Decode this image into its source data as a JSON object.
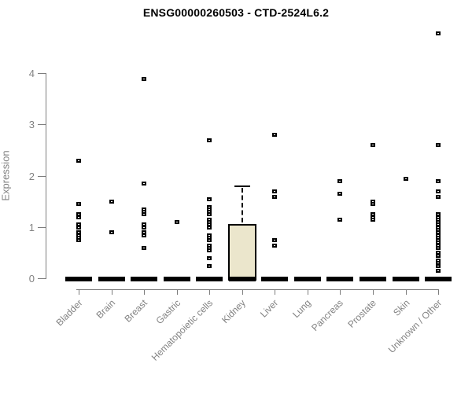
{
  "title": "ENSG00000260503 - CTD-2524L6.2",
  "chart_data": {
    "type": "boxplot",
    "title": "ENSG00000260503 - CTD-2524L6.2",
    "xlabel": "",
    "ylabel": "Expression",
    "yticks": [
      0,
      1,
      2,
      3,
      4
    ],
    "ylim": [
      0,
      4.9
    ],
    "grid": false,
    "legend": "none",
    "categories": [
      "Bladder",
      "Brain",
      "Breast",
      "Gastric",
      "Hematopoietic cells",
      "Kidney",
      "Liver",
      "Lung",
      "Pancreas",
      "Prostate",
      "Skin",
      "Unknown / Other"
    ],
    "series": [
      {
        "category": "Bladder",
        "zero_cluster": true,
        "points": [
          2.3,
          1.45,
          1.25,
          1.2,
          1.05,
          1.0,
          0.9,
          0.85,
          0.8,
          0.75
        ]
      },
      {
        "category": "Brain",
        "zero_cluster": true,
        "points": [
          1.5,
          0.9
        ]
      },
      {
        "category": "Breast",
        "zero_cluster": true,
        "points": [
          3.9,
          1.85,
          1.35,
          1.3,
          1.25,
          1.05,
          1.0,
          0.9,
          0.85,
          0.6
        ]
      },
      {
        "category": "Gastric",
        "zero_cluster": true,
        "points": [
          1.1
        ]
      },
      {
        "category": "Hematopoietic cells",
        "zero_cluster": true,
        "points": [
          2.7,
          1.55,
          1.4,
          1.35,
          1.3,
          1.25,
          1.15,
          1.1,
          1.05,
          1.0,
          0.85,
          0.8,
          0.75,
          0.65,
          0.6,
          0.55,
          0.4,
          0.25
        ]
      },
      {
        "category": "Kidney",
        "zero_cluster": true,
        "points": [],
        "box": {
          "q1": 0,
          "median": 0,
          "q3": 1.05,
          "whisker_low": 0,
          "whisker_high": 1.8
        }
      },
      {
        "category": "Liver",
        "zero_cluster": true,
        "points": [
          2.8,
          1.7,
          1.6,
          0.75,
          0.65
        ]
      },
      {
        "category": "Lung",
        "zero_cluster": true,
        "points": []
      },
      {
        "category": "Pancreas",
        "zero_cluster": true,
        "points": [
          1.9,
          1.65,
          1.15
        ]
      },
      {
        "category": "Prostate",
        "zero_cluster": true,
        "points": [
          2.6,
          1.5,
          1.45,
          1.25,
          1.2,
          1.15
        ]
      },
      {
        "category": "Skin",
        "zero_cluster": true,
        "points": [
          1.95
        ]
      },
      {
        "category": "Unknown / Other",
        "zero_cluster": true,
        "points": [
          4.78,
          2.6,
          1.9,
          1.7,
          1.6,
          1.25,
          1.2,
          1.15,
          1.1,
          1.05,
          1.0,
          0.95,
          0.9,
          0.85,
          0.8,
          0.75,
          0.7,
          0.65,
          0.6,
          0.5,
          0.45,
          0.35,
          0.3,
          0.25,
          0.15
        ]
      }
    ],
    "colors": {
      "box_fill": "#EBE6CC",
      "box_border": "#000000",
      "point": "#000000",
      "axis": "#7D7D7D",
      "tick_label": "#828282",
      "title": "#000000",
      "background": "#FFFFFF"
    }
  }
}
